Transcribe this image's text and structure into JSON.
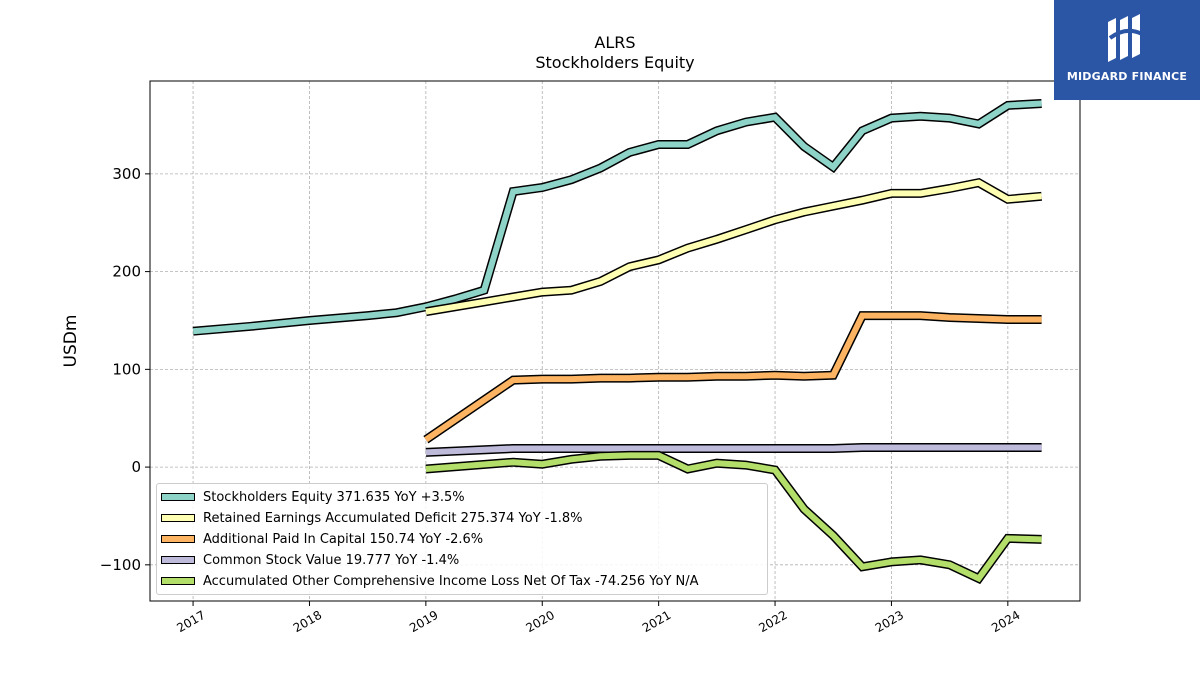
{
  "header": {
    "ticker": "ALRS",
    "subtitle": "Stockholders  Equity"
  },
  "logo": {
    "text": "MIDGARD FINANCE"
  },
  "chart_data": {
    "type": "line",
    "title": "ALRS",
    "subtitle": "Stockholders  Equity",
    "ylabel": "USDm",
    "xlabel": "",
    "xlim": [
      2016.63,
      2024.62
    ],
    "ylim": [
      -137,
      395
    ],
    "xticks": [
      "2017",
      "2018",
      "2019",
      "2020",
      "2021",
      "2022",
      "2023",
      "2024"
    ],
    "yticks": [
      -100,
      0,
      100,
      200,
      300
    ],
    "grid": true,
    "legend_position": "lower-left",
    "series": [
      {
        "name": "Stockholders Equity",
        "legend": "Stockholders Equity  371.635 YoY +3.5%",
        "color": "#8dd3c7",
        "x": [
          2017.0,
          2017.5,
          2018.0,
          2018.5,
          2018.75,
          2019.0,
          2019.25,
          2019.5,
          2019.75,
          2020.0,
          2020.25,
          2020.5,
          2020.75,
          2021.0,
          2021.25,
          2021.5,
          2021.75,
          2022.0,
          2022.25,
          2022.5,
          2022.75,
          2023.0,
          2023.25,
          2023.5,
          2023.75,
          2024.0,
          2024.29
        ],
        "y": [
          139,
          144,
          150,
          155,
          158,
          164,
          172,
          181,
          282,
          286,
          294,
          306,
          322,
          330,
          330,
          344,
          353,
          358,
          328,
          307,
          344,
          357,
          359,
          357,
          351,
          370,
          372
        ]
      },
      {
        "name": "Retained Earnings Accumulated Deficit",
        "legend": "Retained Earnings Accumulated Deficit  275.374 YoY -1.8%",
        "color": "#ffffb3",
        "x": [
          2019.0,
          2019.25,
          2019.5,
          2019.75,
          2020.0,
          2020.25,
          2020.5,
          2020.75,
          2021.0,
          2021.25,
          2021.5,
          2021.75,
          2022.0,
          2022.25,
          2022.5,
          2022.75,
          2023.0,
          2023.25,
          2023.5,
          2023.75,
          2024.0,
          2024.29
        ],
        "y": [
          159,
          164,
          169,
          174,
          179,
          181,
          190,
          205,
          212,
          224,
          233,
          243,
          253,
          261,
          267,
          273,
          280,
          280,
          285,
          291,
          274,
          277
        ]
      },
      {
        "name": "Additional Paid In Capital",
        "legend": "Additional Paid In Capital  150.74 YoY -2.6%",
        "color": "#fdb462",
        "x": [
          2019.0,
          2019.75,
          2020.0,
          2020.25,
          2020.5,
          2020.75,
          2021.0,
          2021.25,
          2021.5,
          2021.75,
          2022.0,
          2022.25,
          2022.5,
          2022.75,
          2023.0,
          2023.25,
          2023.5,
          2023.75,
          2024.0,
          2024.29
        ],
        "y": [
          28,
          89,
          90,
          90,
          91,
          91,
          92,
          92,
          93,
          93,
          94,
          93,
          94,
          155,
          155,
          155,
          153,
          152,
          151,
          151
        ]
      },
      {
        "name": "Common Stock Value",
        "legend": "Common Stock Value  19.777 YoY -1.4%",
        "color": "#bebada",
        "x": [
          2019.0,
          2019.75,
          2020.0,
          2020.5,
          2021.0,
          2021.5,
          2022.0,
          2022.5,
          2022.75,
          2023.0,
          2023.5,
          2024.0,
          2024.29
        ],
        "y": [
          15,
          19,
          19,
          19,
          19,
          19,
          19,
          19,
          20,
          20,
          20,
          20,
          20
        ]
      },
      {
        "name": "Accumulated Other Comprehensive Income Loss Net Of Tax",
        "legend": "Accumulated Other Comprehensive Income Loss Net Of Tax  -74.256 YoY N/A",
        "color": "#b3de69",
        "x": [
          2019.0,
          2019.75,
          2020.0,
          2020.25,
          2020.5,
          2020.75,
          2021.0,
          2021.25,
          2021.5,
          2021.75,
          2022.0,
          2022.25,
          2022.5,
          2022.75,
          2023.0,
          2023.25,
          2023.5,
          2023.75,
          2024.0,
          2024.29
        ],
        "y": [
          -2,
          5,
          3,
          8,
          11,
          12,
          12,
          -2,
          4,
          2,
          -3,
          -43,
          -70,
          -102,
          -97,
          -95,
          -100,
          -114,
          -73,
          -74
        ]
      }
    ]
  }
}
